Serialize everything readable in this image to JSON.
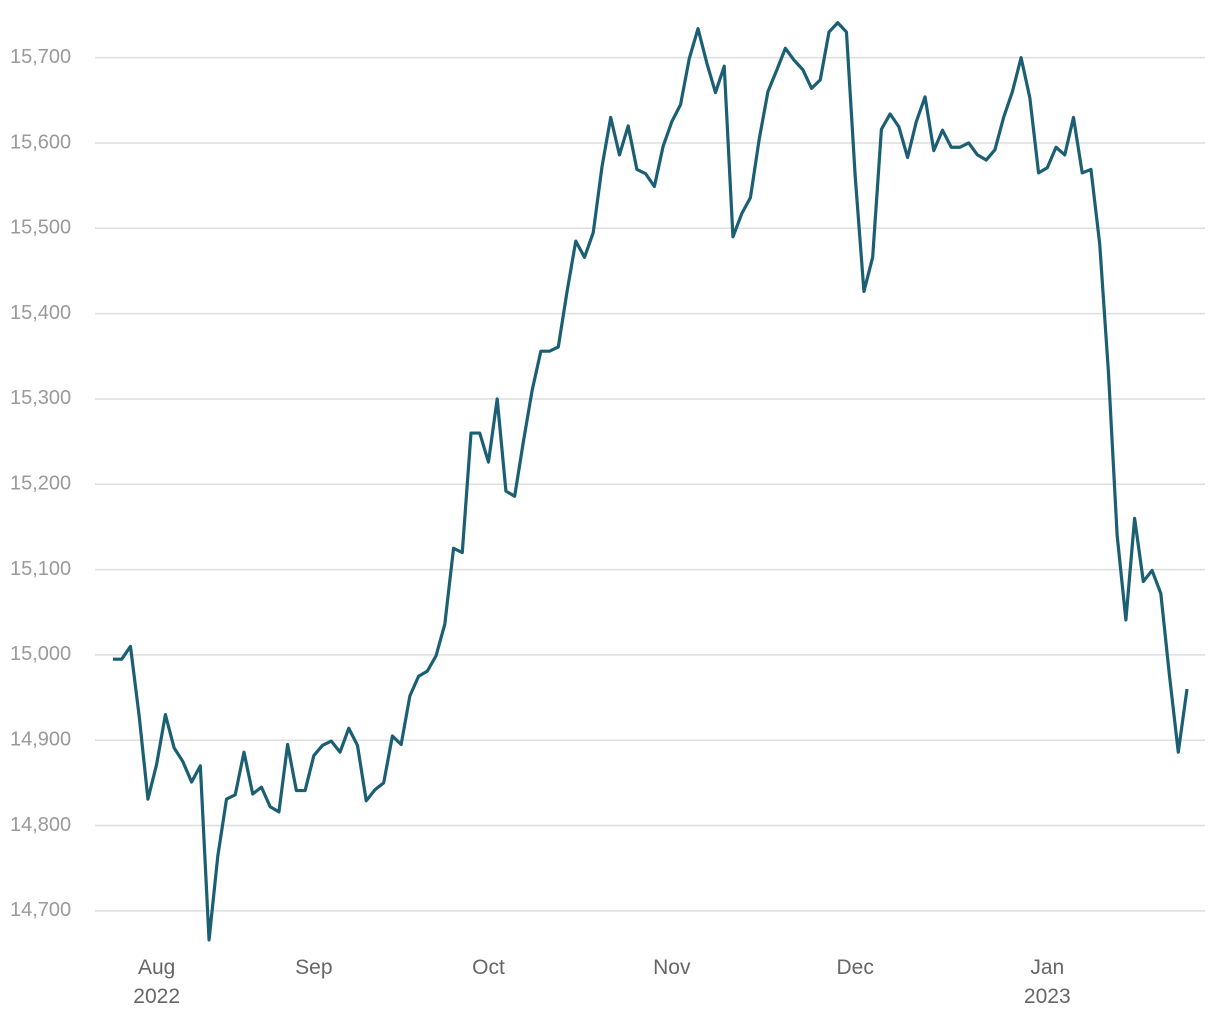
{
  "chart_data": {
    "type": "line",
    "categories": [
      null,
      null,
      null,
      null,
      null,
      "Aug\n2022",
      null,
      null,
      null,
      null,
      null,
      null,
      null,
      null,
      null,
      null,
      null,
      null,
      null,
      null,
      null,
      null,
      null,
      "Sep",
      null,
      null,
      null,
      null,
      null,
      null,
      null,
      null,
      null,
      null,
      null,
      null,
      null,
      null,
      null,
      null,
      null,
      null,
      null,
      "Oct",
      null,
      null,
      null,
      null,
      null,
      null,
      null,
      null,
      null,
      null,
      null,
      null,
      null,
      null,
      null,
      null,
      null,
      null,
      null,
      null,
      "Nov",
      null,
      null,
      null,
      null,
      null,
      null,
      null,
      null,
      null,
      null,
      null,
      null,
      null,
      null,
      null,
      null,
      null,
      null,
      null,
      null,
      "Dec",
      null,
      null,
      null,
      null,
      null,
      null,
      null,
      null,
      null,
      null,
      null,
      null,
      null,
      null,
      null,
      null,
      null,
      null,
      null,
      null,
      null,
      "Jan\n2023",
      null,
      null,
      null,
      null,
      null,
      null,
      null,
      null,
      null,
      null,
      null,
      null,
      null,
      null,
      null,
      null
    ],
    "series": [
      {
        "color": "#1a5f73",
        "values": [
          14995,
          14995,
          15010,
          14928,
          14831,
          14872,
          14930,
          14891,
          14875,
          14851,
          14870,
          14666,
          14764,
          14831,
          14836,
          14886,
          14837,
          14845,
          14822,
          14816,
          14895,
          14841,
          14841,
          14882,
          14894,
          14899,
          14886,
          14914,
          14894,
          14829,
          14842,
          14850,
          14905,
          14895,
          14952,
          14975,
          14981,
          14999,
          15036,
          15125,
          15120,
          15260,
          15260,
          15226,
          15300,
          15192,
          15186,
          15250,
          15310,
          15356,
          15356,
          15361,
          15426,
          15485,
          15466,
          15495,
          15572,
          15630,
          15586,
          15620,
          15569,
          15564,
          15549,
          15596,
          15625,
          15645,
          15699,
          15734,
          15694,
          15659,
          15690,
          15490,
          15517,
          15536,
          15604,
          15660,
          15685,
          15711,
          15697,
          15686,
          15664,
          15674,
          15730,
          15741,
          15730,
          15561,
          15426,
          15466,
          15616,
          15634,
          15619,
          15583,
          15625,
          15654,
          15591,
          15615,
          15595,
          15595,
          15600,
          15586,
          15580,
          15592,
          15630,
          15660,
          15700,
          15653,
          15565,
          15571,
          15595,
          15586,
          15630,
          15565,
          15569,
          15482,
          15332,
          15140,
          15041,
          15160,
          15086,
          15099,
          15072,
          14975,
          14886,
          14960
        ]
      }
    ],
    "ylim": [
      14660,
      15750
    ],
    "yticks": [
      {
        "value": 14700,
        "label": "14,700"
      },
      {
        "value": 14800,
        "label": "14,800"
      },
      {
        "value": 14900,
        "label": "14,900"
      },
      {
        "value": 15000,
        "label": "15,000"
      },
      {
        "value": 15100,
        "label": "15,100"
      },
      {
        "value": 15200,
        "label": "15,200"
      },
      {
        "value": 15300,
        "label": "15,300"
      },
      {
        "value": 15400,
        "label": "15,400"
      },
      {
        "value": 15500,
        "label": "15,500"
      },
      {
        "value": 15600,
        "label": "15,600"
      },
      {
        "value": 15700,
        "label": "15,700"
      }
    ],
    "grid": true
  }
}
